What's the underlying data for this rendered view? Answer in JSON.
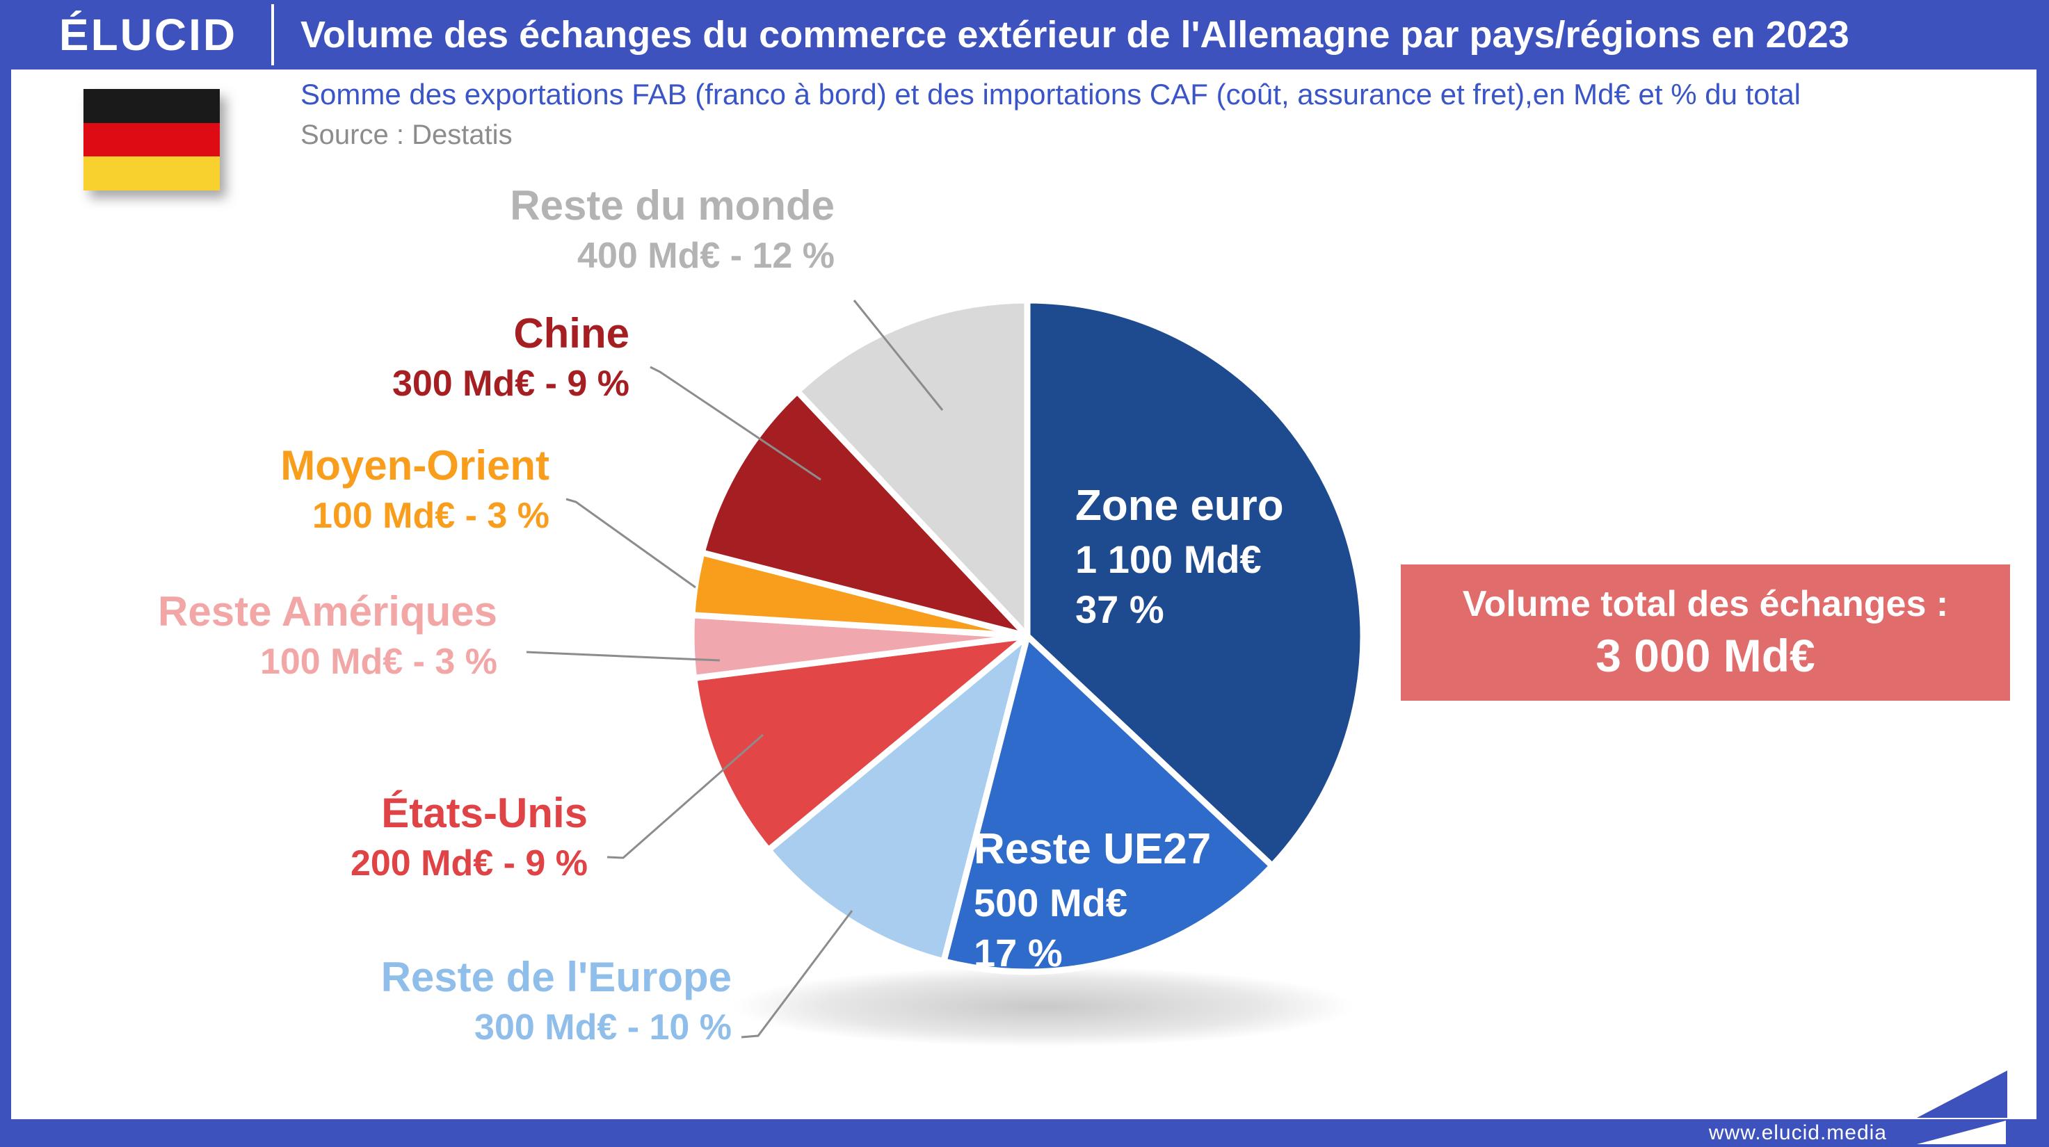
{
  "header": {
    "brand": "ÉLUCID",
    "title": "Volume des échanges du commerce extérieur de l'Allemagne par pays/régions en 2023",
    "subtitle": "Somme des exportations FAB (franco à bord) et des importations CAF (coût, assurance et fret),en Md€ et % du total",
    "source": "Source : Destatis"
  },
  "flag": {
    "name": "germany-flag",
    "black": "#1A1A1A",
    "red": "#DF0B14",
    "gold": "#F8D12E"
  },
  "total_box": {
    "line1": "Volume total des échanges :",
    "line2": "3 000 Md€",
    "bg_color": "#E06C6C"
  },
  "footer": {
    "url": "www.elucid.media"
  },
  "colors": {
    "frame_blue": "#3E52BE",
    "subtitle_blue": "#3A55C8",
    "source_gray": "#8C8C8C",
    "leader_gray": "#8C8C8C"
  },
  "chart_data": {
    "type": "pie",
    "title": "Volume des échanges du commerce extérieur de l'Allemagne par pays/régions en 2023",
    "unit": "Md€",
    "total_value": 3000,
    "total_label": "3 000 Md€",
    "start_angle_deg": 0,
    "direction": "clockwise",
    "legend_position": "callouts",
    "slices": [
      {
        "label": "Zone euro",
        "value": 1100,
        "pct": 37,
        "color": "#1E4B8F",
        "value_label": "1 100 Md€",
        "pct_label": "37 %",
        "label_position": "inside",
        "label_color": "#FFFFFF"
      },
      {
        "label": "Reste UE27",
        "value": 500,
        "pct": 17,
        "color": "#2F6BCB",
        "value_label": "500 Md€",
        "pct_label": "17 %",
        "label_position": "inside",
        "label_color": "#FFFFFF"
      },
      {
        "label": "Reste de l'Europe",
        "value": 300,
        "pct": 10,
        "color": "#A8CDEE",
        "value_label": "300 Md€ - 10 %",
        "label_position": "outside",
        "label_color": "#90BEEA"
      },
      {
        "label": "États-Unis",
        "value": 200,
        "pct": 9,
        "color": "#E24646",
        "value_label": "200 Md€ - 9 %",
        "label_position": "outside",
        "label_color": "#E04345"
      },
      {
        "label": "Reste Amériques",
        "value": 100,
        "pct": 3,
        "color": "#F0A8AE",
        "value_label": "100 Md€ - 3 %",
        "label_position": "outside",
        "label_color": "#F2A6A6"
      },
      {
        "label": "Moyen-Orient",
        "value": 100,
        "pct": 3,
        "color": "#F99D1D",
        "value_label": "100 Md€ - 3 %",
        "label_position": "outside",
        "label_color": "#F99D1D"
      },
      {
        "label": "Chine",
        "value": 300,
        "pct": 9,
        "color": "#A51E22",
        "value_label": "300 Md€ - 9 %",
        "label_position": "outside",
        "label_color": "#A51E22"
      },
      {
        "label": "Reste du monde",
        "value": 400,
        "pct": 12,
        "color": "#D9D9D9",
        "value_label": "400 Md€ - 12 %",
        "label_position": "outside",
        "label_color": "#B3B3B3"
      }
    ]
  }
}
